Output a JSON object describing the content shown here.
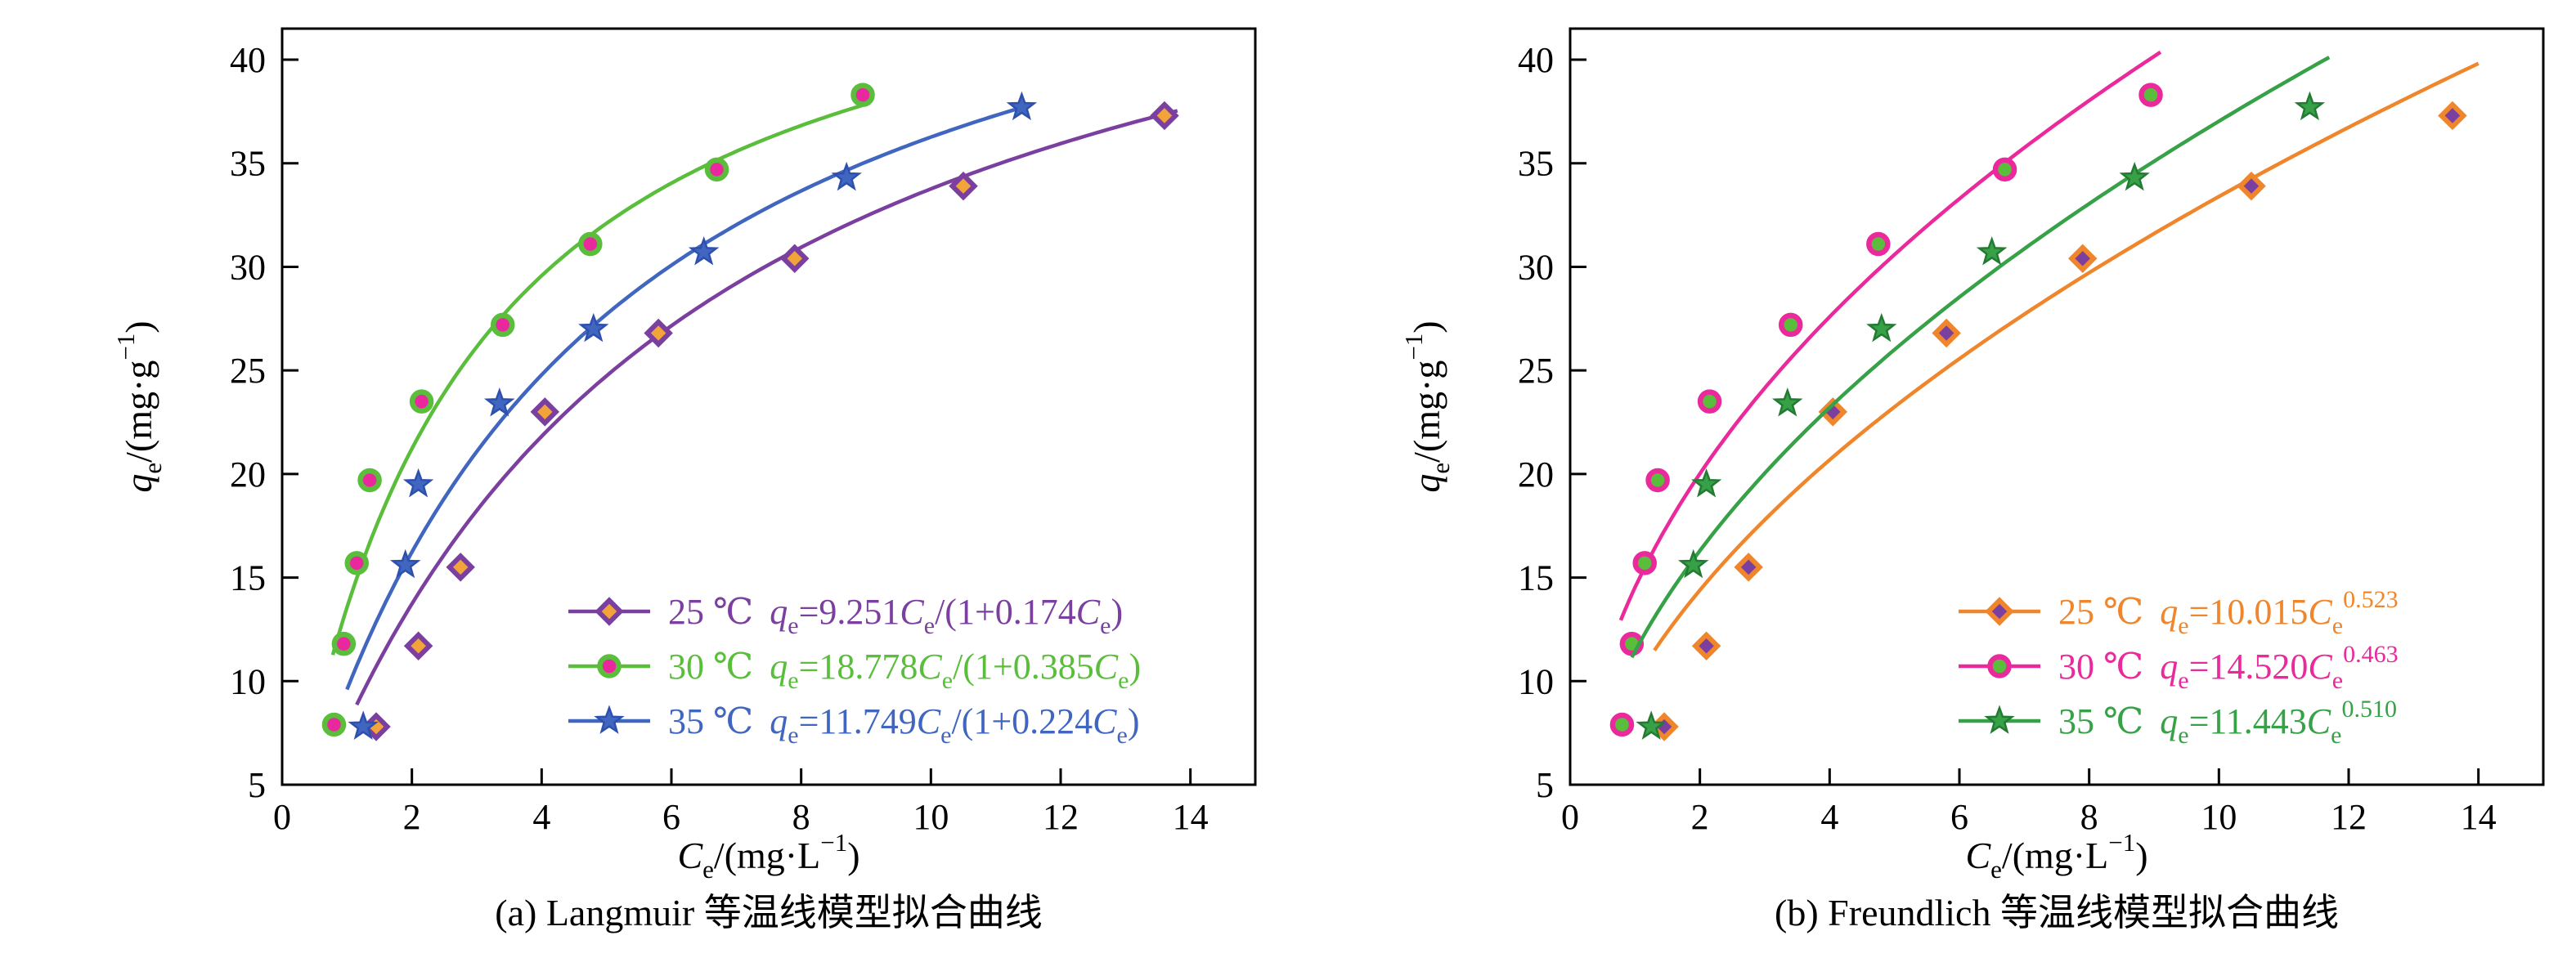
{
  "page": {
    "background": "#ffffff"
  },
  "chart_data": [
    {
      "type": "scatter",
      "caption": "(a) Langmuir 等温线模型拟合曲线",
      "xlabel": "C_{e}/(mg·L^{−1})",
      "ylabel": "q_{e}/(mg·g^{−1})",
      "xlim": [
        0,
        15
      ],
      "ylim": [
        5,
        41.5
      ],
      "xticks": [
        0,
        2,
        4,
        6,
        8,
        10,
        12,
        14
      ],
      "yticks": [
        5,
        10,
        15,
        20,
        25,
        30,
        35,
        40
      ],
      "grid": false,
      "legend_position": "lower-right",
      "legend_layout": {
        "x": 695,
        "y0": 748,
        "dy": 67
      },
      "series": [
        {
          "label": "25 ℃",
          "equation": "q_{e}=9.251C_{e}/(1+0.174C_{e})",
          "marker": "diamond",
          "color": "#7b3fa0",
          "marker_fill": "#f2a43a",
          "marker_edge": "#7b3fa0",
          "fit": {
            "type": "langmuir",
            "a": 9.251,
            "b": 0.174,
            "range": [
              1.15,
              13.8
            ]
          },
          "points": [
            [
              1.45,
              7.8
            ],
            [
              2.1,
              11.7
            ],
            [
              2.75,
              15.5
            ],
            [
              4.05,
              23.0
            ],
            [
              5.8,
              26.8
            ],
            [
              7.9,
              30.4
            ],
            [
              10.5,
              33.9
            ],
            [
              13.6,
              37.3
            ]
          ]
        },
        {
          "label": "30 ℃",
          "equation": "q_{e}=18.778C_{e}/(1+0.385C_{e})",
          "marker": "circle",
          "color": "#5abe3c",
          "marker_fill": "#e8289c",
          "marker_edge": "#5abe3c",
          "fit": {
            "type": "langmuir",
            "a": 18.778,
            "b": 0.385,
            "range": [
              0.78,
              9.05
            ]
          },
          "points": [
            [
              0.8,
              7.9
            ],
            [
              0.95,
              11.8
            ],
            [
              1.15,
              15.7
            ],
            [
              1.35,
              19.7
            ],
            [
              2.15,
              23.5
            ],
            [
              3.4,
              27.2
            ],
            [
              4.75,
              31.1
            ],
            [
              6.7,
              34.7
            ],
            [
              8.95,
              38.3
            ]
          ]
        },
        {
          "label": "35 ℃",
          "equation": "q_{e}=11.749C_{e}/(1+0.224C_{e})",
          "marker": "star",
          "color": "#4166c0",
          "marker_fill": "#4166c0",
          "marker_edge": "#2d4fae",
          "fit": {
            "type": "langmuir",
            "a": 11.749,
            "b": 0.224,
            "range": [
              1.0,
              11.5
            ]
          },
          "points": [
            [
              1.25,
              7.8
            ],
            [
              1.9,
              15.6
            ],
            [
              2.1,
              19.5
            ],
            [
              3.35,
              23.4
            ],
            [
              4.8,
              27.0
            ],
            [
              6.5,
              30.7
            ],
            [
              8.7,
              34.3
            ],
            [
              11.4,
              37.7
            ]
          ]
        }
      ]
    },
    {
      "type": "scatter",
      "caption": "(b) Freundlich 等温线模型拟合曲线",
      "xlabel": "C_{e}/(mg·L^{−1})",
      "ylabel": "q_{e}/(mg·g^{−1})",
      "xlim": [
        0,
        15
      ],
      "ylim": [
        5,
        41.5
      ],
      "xticks": [
        0,
        2,
        4,
        6,
        8,
        10,
        12,
        14
      ],
      "yticks": [
        5,
        10,
        15,
        20,
        25,
        30,
        35,
        40
      ],
      "grid": false,
      "legend_position": "lower-right",
      "legend_layout": {
        "x": 820,
        "y0": 748,
        "dy": 67
      },
      "series": [
        {
          "label": "25 ℃",
          "equation": "q_{e}=10.015C_{e}^{0.523}",
          "marker": "diamond",
          "color": "#f0862c",
          "marker_fill": "#7b3fa0",
          "marker_edge": "#f0862c",
          "fit": {
            "type": "freundlich",
            "k": 10.015,
            "n": 0.523,
            "range": [
              1.3,
              14.0
            ]
          },
          "points": [
            [
              1.45,
              7.8
            ],
            [
              2.1,
              11.7
            ],
            [
              2.75,
              15.5
            ],
            [
              4.05,
              23.0
            ],
            [
              5.8,
              26.8
            ],
            [
              7.9,
              30.4
            ],
            [
              10.5,
              33.9
            ],
            [
              13.6,
              37.3
            ]
          ]
        },
        {
          "label": "30 ℃",
          "equation": "q_{e}=14.520C_{e}^{0.463}",
          "marker": "circle",
          "color": "#ea2a9c",
          "marker_fill": "#5abe3c",
          "marker_edge": "#ea2a9c",
          "fit": {
            "type": "freundlich",
            "k": 14.52,
            "n": 0.463,
            "range": [
              0.78,
              9.1
            ]
          },
          "points": [
            [
              0.8,
              7.9
            ],
            [
              0.95,
              11.8
            ],
            [
              1.15,
              15.7
            ],
            [
              1.35,
              19.7
            ],
            [
              2.15,
              23.5
            ],
            [
              3.4,
              27.2
            ],
            [
              4.75,
              31.1
            ],
            [
              6.7,
              34.7
            ],
            [
              8.95,
              38.3
            ]
          ]
        },
        {
          "label": "35 ℃",
          "equation": "q_{e}=11.443C_{e}^{0.510}",
          "marker": "star",
          "color": "#36a147",
          "marker_fill": "#36a147",
          "marker_edge": "#237a32",
          "fit": {
            "type": "freundlich",
            "k": 11.443,
            "n": 0.51,
            "range": [
              0.95,
              11.7
            ]
          },
          "points": [
            [
              1.25,
              7.8
            ],
            [
              1.9,
              15.6
            ],
            [
              2.1,
              19.5
            ],
            [
              3.35,
              23.4
            ],
            [
              4.8,
              27.0
            ],
            [
              6.5,
              30.7
            ],
            [
              8.7,
              34.3
            ],
            [
              11.4,
              37.7
            ]
          ]
        }
      ]
    }
  ]
}
